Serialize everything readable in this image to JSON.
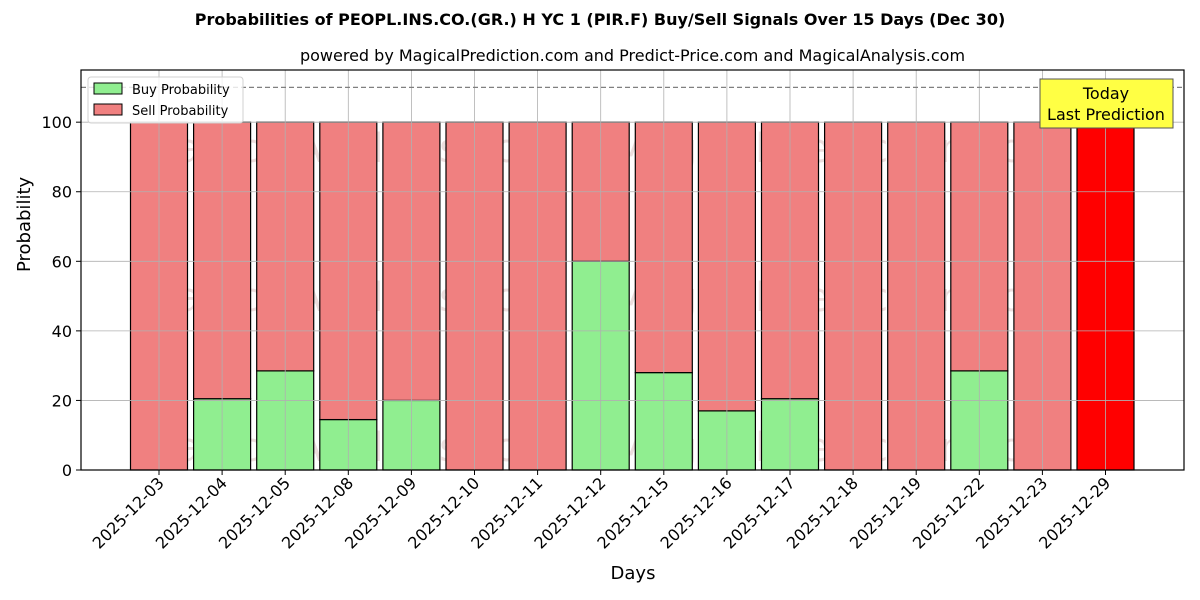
{
  "chart_data": {
    "type": "bar",
    "stacked": true,
    "title": "Probabilities of PEOPL.INS.CO.(GR.) H YC 1 (PIR.F) Buy/Sell Signals Over 15 Days (Dec 30)",
    "subtitle": "powered by MagicalPrediction.com and Predict-Price.com and MagicalAnalysis.com",
    "xlabel": "Days",
    "ylabel": "Probability",
    "ylim": [
      0,
      115
    ],
    "yticks": [
      0,
      20,
      40,
      60,
      80,
      100
    ],
    "grid": true,
    "reference_line": {
      "y": 110,
      "style": "dashed",
      "color": "#808080"
    },
    "categories": [
      "2025-12-03",
      "2025-12-04",
      "2025-12-05",
      "2025-12-08",
      "2025-12-09",
      "2025-12-10",
      "2025-12-11",
      "2025-12-12",
      "2025-12-15",
      "2025-12-16",
      "2025-12-17",
      "2025-12-18",
      "2025-12-19",
      "2025-12-22",
      "2025-12-23",
      "2025-12-29"
    ],
    "series": [
      {
        "name": "Buy Probability",
        "color": "#90EE90",
        "values": [
          0,
          20.5,
          28.5,
          14.5,
          20,
          0,
          0,
          60,
          28,
          17,
          20.5,
          0,
          0,
          28.5,
          0,
          0
        ]
      },
      {
        "name": "Sell Probability",
        "color": "#F08080",
        "values": [
          100,
          79.5,
          71.5,
          85.5,
          80,
          100,
          100,
          40,
          72,
          83,
          79.5,
          100,
          100,
          71.5,
          100,
          100
        ]
      }
    ],
    "highlight": {
      "category": "2025-12-29",
      "color": "#FF0000",
      "annotation": "Today\nLast Prediction",
      "annotation_bg": "#FFFF44"
    },
    "legend": {
      "position": "upper left",
      "entries": [
        "Buy Probability",
        "Sell Probability"
      ]
    },
    "watermarks": [
      "MagicalAnalysis.com",
      "MagicalPrediction.com"
    ]
  },
  "labels": {
    "today_line1": "Today",
    "today_line2": "Last Prediction"
  }
}
